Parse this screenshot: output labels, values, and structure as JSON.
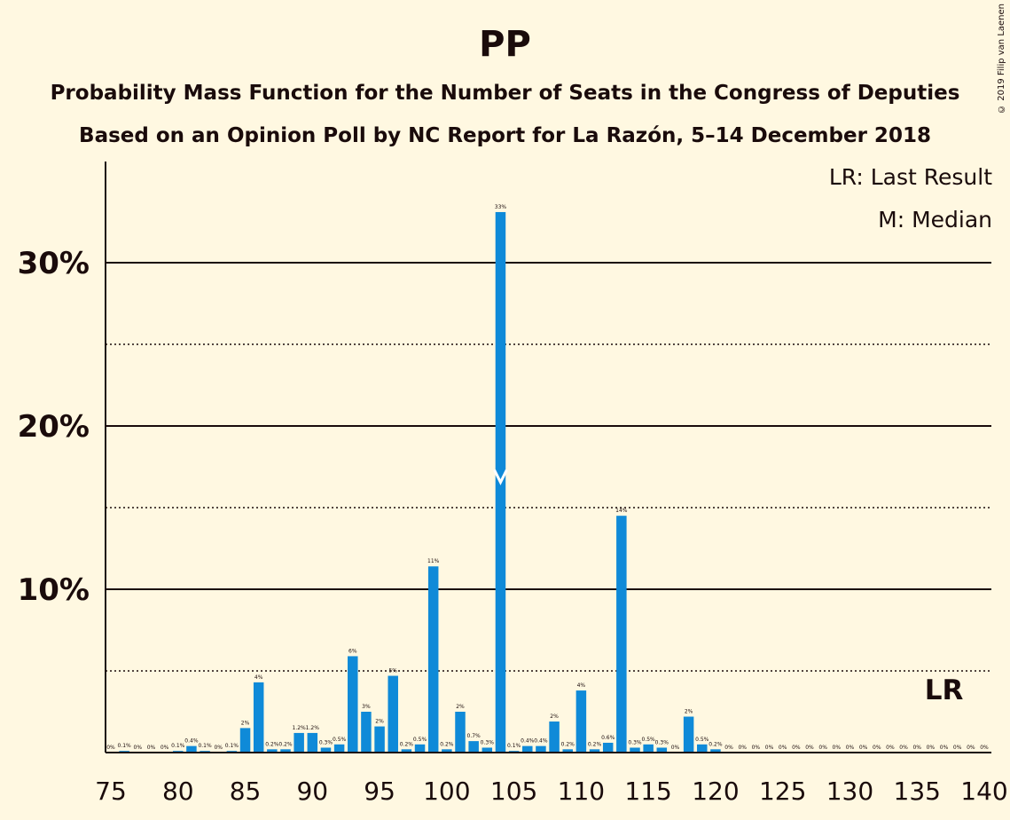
{
  "chart_data": {
    "type": "bar",
    "title": "PP",
    "subtitle": [
      "Probability Mass Function for the Number of Seats in the Congress of Deputies",
      "Based on an Opinion Poll by NC Report for La Razón, 5–14 December 2018"
    ],
    "copyright": "© 2019 Filip van Laenen",
    "legend": [
      "LR: Last Result",
      "M: Median"
    ],
    "color": "#0f8ad8",
    "x": [
      75,
      76,
      77,
      78,
      79,
      80,
      81,
      82,
      83,
      84,
      85,
      86,
      87,
      88,
      89,
      90,
      91,
      92,
      93,
      94,
      95,
      96,
      97,
      98,
      99,
      100,
      101,
      102,
      103,
      104,
      105,
      106,
      107,
      108,
      109,
      110,
      111,
      112,
      113,
      114,
      115,
      116,
      117,
      118,
      119,
      120,
      121,
      122,
      123,
      124,
      125,
      126,
      127,
      128,
      129,
      130,
      131,
      132,
      133,
      134,
      135,
      136,
      137,
      138,
      139,
      140
    ],
    "values": [
      0,
      0.1,
      0,
      0,
      0,
      0.1,
      0.4,
      0.1,
      0,
      0.1,
      1.5,
      4.3,
      0.2,
      0.2,
      1.2,
      1.2,
      0.3,
      0.5,
      5.9,
      2.5,
      1.6,
      4.7,
      0.2,
      0.5,
      11.4,
      0.2,
      2.5,
      0.7,
      0.3,
      33.1,
      0.1,
      0.4,
      0.4,
      1.9,
      0.2,
      3.8,
      0.2,
      0.6,
      14.5,
      0.3,
      0.5,
      0.3,
      0,
      2.2,
      0.5,
      0.2,
      0,
      0,
      0,
      0,
      0,
      0,
      0,
      0,
      0,
      0,
      0,
      0,
      0,
      0,
      0,
      0,
      0,
      0,
      0,
      0
    ],
    "data_labels": [
      "0%",
      "0.1%",
      "0%",
      "0%",
      "0%",
      "0.1%",
      "0.4%",
      "0.1%",
      "0%",
      "0.1%",
      "2%",
      "4%",
      "0.2%",
      "0.2%",
      "1.2%",
      "1.2%",
      "0.3%",
      "0.5%",
      "6%",
      "3%",
      "2%",
      "5%",
      "0.2%",
      "0.5%",
      "11%",
      "0.2%",
      "2%",
      "0.7%",
      "0.3%",
      "33%",
      "0.1%",
      "0.4%",
      "0.4%",
      "2%",
      "0.2%",
      "4%",
      "0.2%",
      "0.6%",
      "14%",
      "0.3%",
      "0.5%",
      "0.3%",
      "0%",
      "2%",
      "0.5%",
      "0.2%",
      "0%",
      "0%",
      "0%",
      "0%",
      "0%",
      "0%",
      "0%",
      "0%",
      "0%",
      "0%",
      "0%",
      "0%",
      "0%",
      "0%",
      "0%",
      "0%",
      "0%",
      "0%",
      "0%",
      "0%"
    ],
    "xticks": [
      "75",
      "80",
      "85",
      "90",
      "95",
      "100",
      "105",
      "110",
      "115",
      "120",
      "125",
      "130",
      "135",
      "140"
    ],
    "yticks": [
      "10%",
      "20%",
      "30%"
    ],
    "ylim": [
      0,
      36
    ],
    "median": 104,
    "last_result": 137,
    "last_result_label": "LR"
  }
}
